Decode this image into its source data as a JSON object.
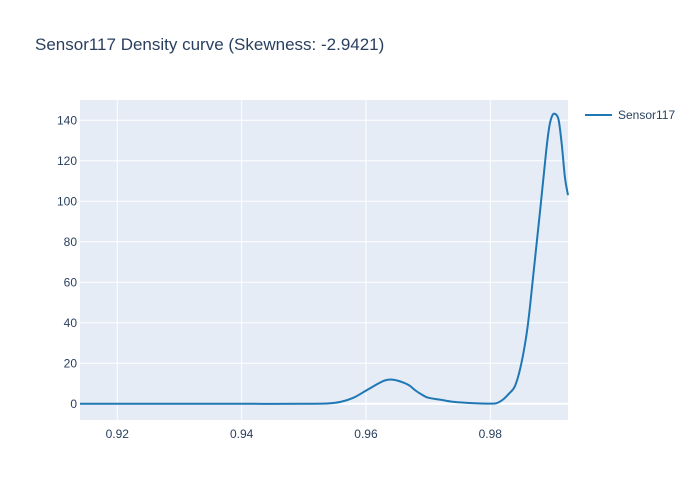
{
  "chart_data": {
    "type": "line",
    "title": "Sensor117 Density curve (Skewness: -2.9421)",
    "xlabel": "",
    "ylabel": "",
    "xlim": [
      0.914,
      0.9925
    ],
    "ylim": [
      -8,
      150
    ],
    "x_ticks": [
      0.92,
      0.94,
      0.96,
      0.98
    ],
    "x_tick_labels": [
      "0.92",
      "0.94",
      "0.96",
      "0.98"
    ],
    "y_ticks": [
      0,
      20,
      40,
      60,
      80,
      100,
      120,
      140
    ],
    "y_tick_labels": [
      "0",
      "20",
      "40",
      "60",
      "80",
      "100",
      "120",
      "140"
    ],
    "grid": true,
    "legend_position": "top-right",
    "background_color": "#e5ecf6",
    "series": [
      {
        "name": "Sensor117",
        "color": "#1f77b4",
        "x": [
          0.914,
          0.92,
          0.93,
          0.94,
          0.95,
          0.954,
          0.956,
          0.958,
          0.96,
          0.962,
          0.963,
          0.964,
          0.965,
          0.966,
          0.967,
          0.968,
          0.969,
          0.97,
          0.972,
          0.974,
          0.976,
          0.978,
          0.98,
          0.981,
          0.982,
          0.983,
          0.984,
          0.985,
          0.986,
          0.987,
          0.988,
          0.989,
          0.9895,
          0.99,
          0.9905,
          0.991,
          0.9915,
          0.992,
          0.9925
        ],
        "y": [
          0,
          0,
          0,
          0,
          0,
          0.2,
          1,
          3,
          6.5,
          10,
          11.5,
          12,
          11.5,
          10.5,
          9,
          6.5,
          4.5,
          3,
          2,
          1,
          0.5,
          0.2,
          0.1,
          0.3,
          2,
          5,
          9,
          20,
          38,
          66,
          95,
          125,
          137,
          142.5,
          143,
          140,
          128,
          112,
          103
        ]
      }
    ]
  }
}
